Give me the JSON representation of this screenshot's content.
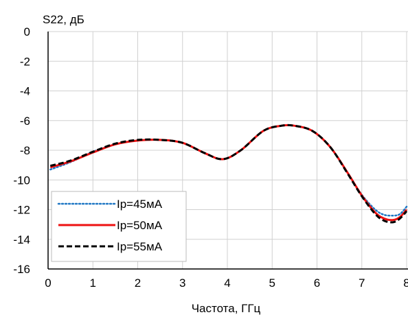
{
  "chart_data": {
    "type": "line",
    "title": "",
    "ylabel": "S22, дБ",
    "xlabel": "Частота, ГГц",
    "xlim": [
      0,
      8
    ],
    "ylim": [
      -16,
      0
    ],
    "xticks": [
      "0",
      "1",
      "2",
      "3",
      "4",
      "5",
      "6",
      "7",
      "8"
    ],
    "yticks": [
      "0",
      "-2",
      "-4",
      "-6",
      "-8",
      "-10",
      "-12",
      "-14",
      "-16"
    ],
    "grid": true,
    "legend_position": "bottom-left",
    "series": [
      {
        "name": "Ip=45мА",
        "color": "#1f77c4",
        "style": "dotted",
        "x": [
          0.05,
          0.5,
          1.0,
          1.5,
          2.0,
          2.5,
          3.0,
          3.5,
          3.9,
          4.3,
          4.8,
          5.2,
          5.5,
          5.9,
          6.3,
          6.7,
          7.0,
          7.3,
          7.5,
          7.7,
          7.85,
          8.0
        ],
        "y": [
          -9.3,
          -8.8,
          -8.1,
          -7.6,
          -7.35,
          -7.3,
          -7.5,
          -8.2,
          -8.6,
          -8.0,
          -6.7,
          -6.35,
          -6.35,
          -6.7,
          -7.8,
          -9.6,
          -11.0,
          -12.0,
          -12.35,
          -12.4,
          -12.3,
          -11.8
        ]
      },
      {
        "name": "Ip=50мА",
        "color": "#ee1111",
        "style": "solid",
        "x": [
          0.05,
          0.5,
          1.0,
          1.5,
          2.0,
          2.5,
          3.0,
          3.5,
          3.9,
          4.3,
          4.8,
          5.2,
          5.5,
          5.9,
          6.3,
          6.7,
          7.0,
          7.3,
          7.5,
          7.7,
          7.85,
          8.0
        ],
        "y": [
          -9.15,
          -8.75,
          -8.15,
          -7.6,
          -7.35,
          -7.3,
          -7.5,
          -8.2,
          -8.6,
          -8.0,
          -6.7,
          -6.35,
          -6.35,
          -6.7,
          -7.8,
          -9.6,
          -11.05,
          -12.2,
          -12.6,
          -12.7,
          -12.5,
          -12.0
        ]
      },
      {
        "name": "Ip=55мА",
        "color": "#000000",
        "style": "dashed",
        "x": [
          0.05,
          0.5,
          1.0,
          1.5,
          2.0,
          2.5,
          3.0,
          3.5,
          3.9,
          4.3,
          4.8,
          5.2,
          5.5,
          5.9,
          6.3,
          6.7,
          7.0,
          7.3,
          7.5,
          7.7,
          7.85,
          8.0
        ],
        "y": [
          -9.05,
          -8.7,
          -8.1,
          -7.55,
          -7.3,
          -7.3,
          -7.5,
          -8.2,
          -8.6,
          -8.0,
          -6.7,
          -6.35,
          -6.35,
          -6.7,
          -7.8,
          -9.65,
          -11.1,
          -12.3,
          -12.75,
          -12.85,
          -12.6,
          -12.1
        ]
      }
    ]
  }
}
